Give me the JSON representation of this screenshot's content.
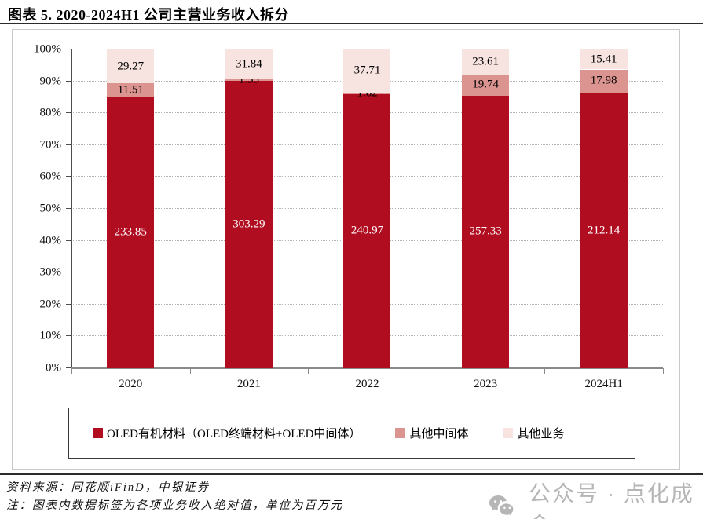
{
  "title": "图表 5. 2020-2024H1 公司主营业务收入拆分",
  "chart_data": {
    "type": "bar",
    "stacked": true,
    "percent_normalized": true,
    "categories": [
      "2020",
      "2021",
      "2022",
      "2023",
      "2024H1"
    ],
    "series": [
      {
        "name": "OLED有机材料（OLED终端材料+OLED中间体）",
        "color": "#B00D20",
        "label_color": "#ffffff",
        "values": [
          233.85,
          303.29,
          240.97,
          257.33,
          212.14
        ]
      },
      {
        "name": "其他中间体",
        "color": "#DB948F",
        "label_color": "#000000",
        "values": [
          11.51,
          1.53,
          1.62,
          19.74,
          17.98
        ]
      },
      {
        "name": "其他业务",
        "color": "#F7E4E1",
        "label_color": "#000000",
        "values": [
          29.27,
          31.84,
          37.71,
          23.61,
          15.41
        ]
      }
    ],
    "y_ticks": [
      "0%",
      "10%",
      "20%",
      "30%",
      "40%",
      "50%",
      "60%",
      "70%",
      "80%",
      "90%",
      "100%"
    ],
    "ylim": [
      0,
      100
    ],
    "grid": "horizontal-dotted",
    "legend_position": "bottom-box",
    "value_unit_note": "数据标签为各项业务收入绝对值，单位为百万元"
  },
  "footer": {
    "source": "资料来源：同花顺iFinD，中银证券",
    "note": "注：图表内数据标签为各项业务收入绝对值，单位为百万元"
  },
  "watermark": {
    "label": "公众号 · 点化成金"
  }
}
